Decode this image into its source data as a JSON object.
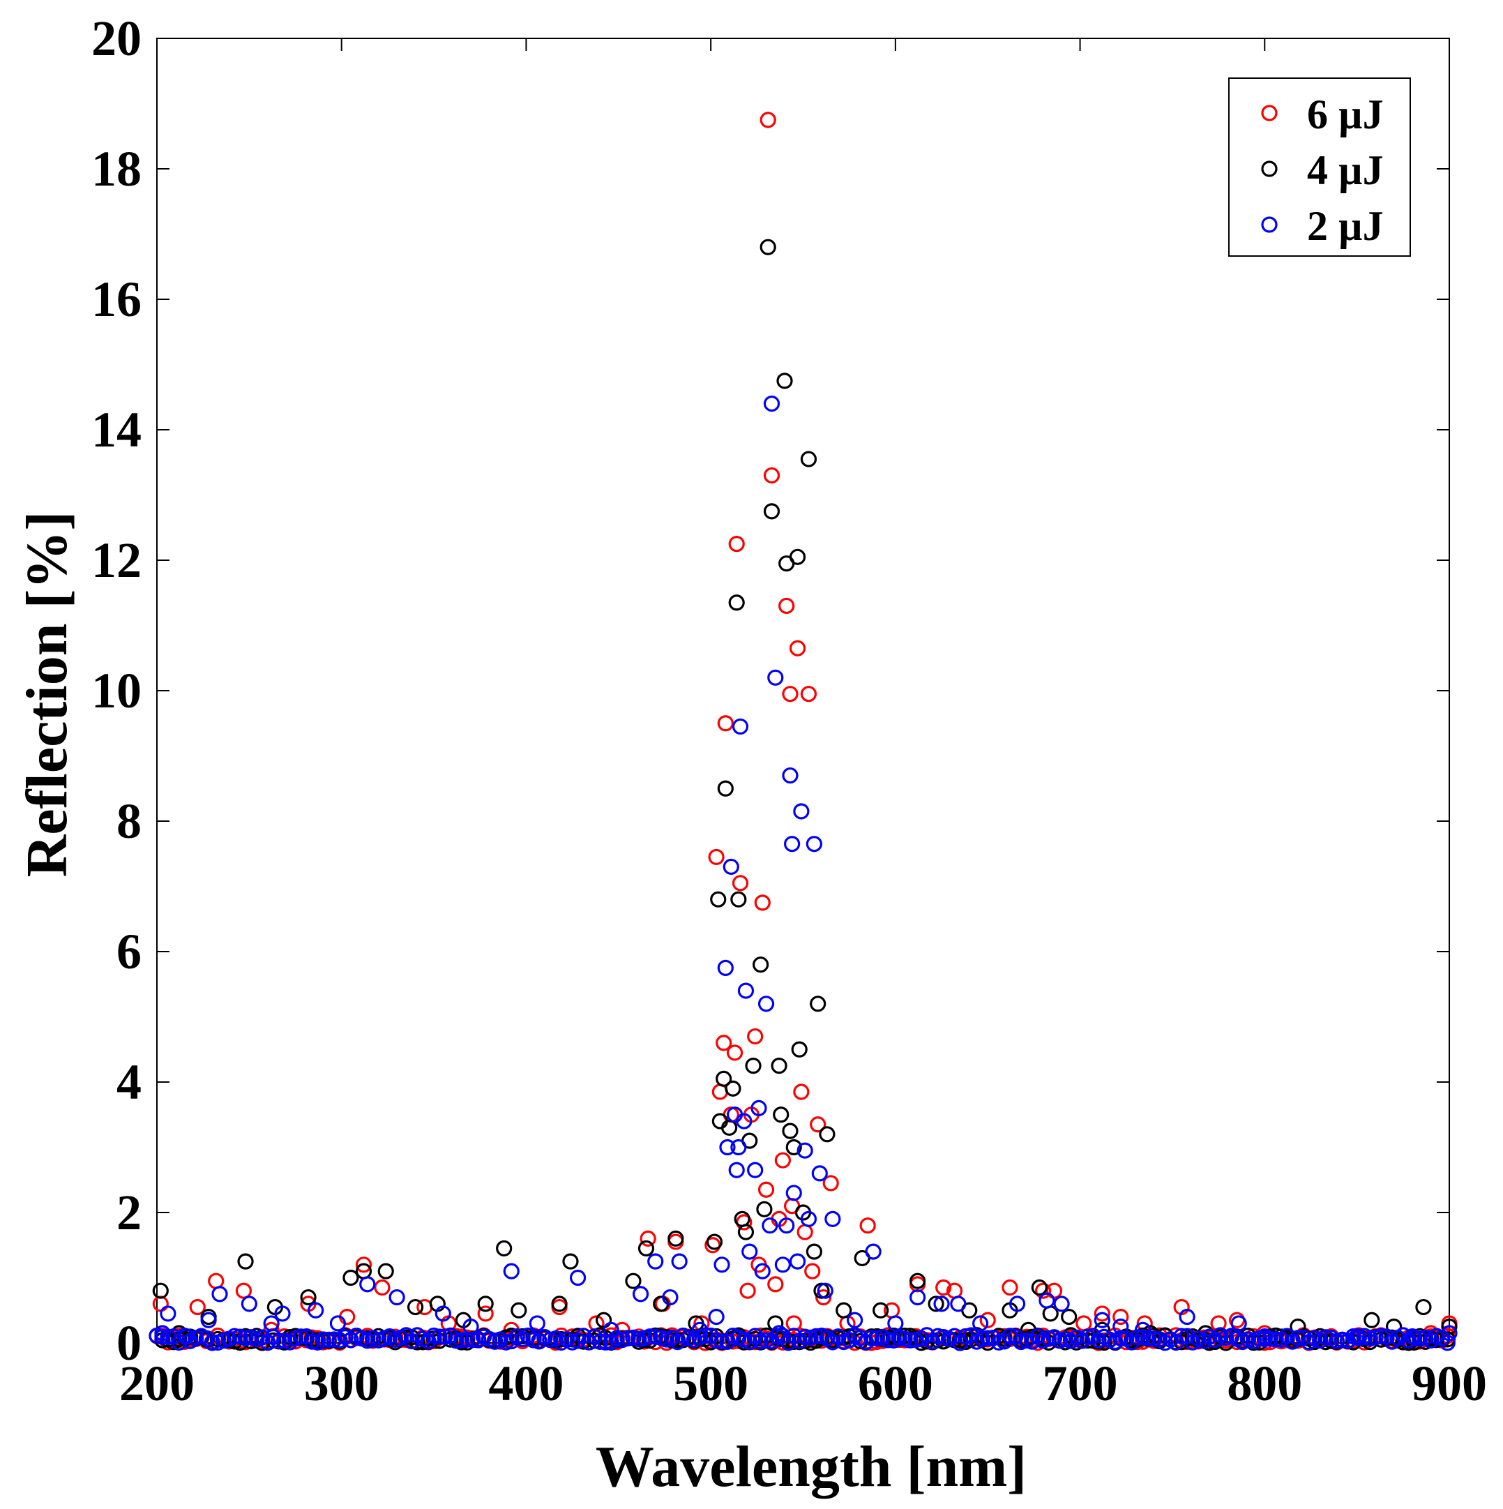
{
  "chart_data": {
    "type": "scatter",
    "title": "",
    "xlabel": "Wavelength [nm]",
    "ylabel": "Reflection [%]",
    "xlim": [
      200,
      900
    ],
    "ylim": [
      0,
      20
    ],
    "xticks": [
      200,
      300,
      400,
      500,
      600,
      700,
      800,
      900
    ],
    "yticks": [
      0,
      2,
      4,
      6,
      8,
      10,
      12,
      14,
      16,
      18,
      20
    ],
    "legend_position": "top-right",
    "marker": "open-circle",
    "series": [
      {
        "name": "6 µJ",
        "color": "#ff0000",
        "points": [
          [
            202,
            0.6
          ],
          [
            212,
            0.1
          ],
          [
            222,
            0.55
          ],
          [
            232,
            0.95
          ],
          [
            247,
            0.8
          ],
          [
            262,
            0.2
          ],
          [
            282,
            0.6
          ],
          [
            303,
            0.4
          ],
          [
            312,
            1.2
          ],
          [
            322,
            0.85
          ],
          [
            345,
            0.55
          ],
          [
            358,
            0.3
          ],
          [
            378,
            0.45
          ],
          [
            392,
            0.2
          ],
          [
            418,
            0.55
          ],
          [
            438,
            0.3
          ],
          [
            452,
            0.2
          ],
          [
            466,
            1.6
          ],
          [
            474,
            0.6
          ],
          [
            481,
            1.55
          ],
          [
            495,
            0.3
          ],
          [
            501,
            1.5
          ],
          [
            503,
            7.45
          ],
          [
            505,
            3.85
          ],
          [
            507,
            4.6
          ],
          [
            508,
            9.5
          ],
          [
            511,
            3.5
          ],
          [
            513,
            4.45
          ],
          [
            514,
            12.25
          ],
          [
            516,
            7.05
          ],
          [
            518,
            1.85
          ],
          [
            520,
            0.8
          ],
          [
            522,
            3.5
          ],
          [
            524,
            4.7
          ],
          [
            526,
            1.2
          ],
          [
            528,
            6.75
          ],
          [
            530,
            2.35
          ],
          [
            531,
            18.75
          ],
          [
            533,
            13.3
          ],
          [
            535,
            0.9
          ],
          [
            537,
            1.9
          ],
          [
            539,
            2.8
          ],
          [
            541,
            11.3
          ],
          [
            543,
            9.95
          ],
          [
            544,
            2.1
          ],
          [
            545,
            0.3
          ],
          [
            547,
            10.65
          ],
          [
            549,
            3.85
          ],
          [
            551,
            1.7
          ],
          [
            553,
            9.95
          ],
          [
            555,
            1.1
          ],
          [
            558,
            3.35
          ],
          [
            561,
            0.7
          ],
          [
            565,
            2.45
          ],
          [
            574,
            0.3
          ],
          [
            585,
            1.8
          ],
          [
            598,
            0.5
          ],
          [
            612,
            0.9
          ],
          [
            626,
            0.85
          ],
          [
            632,
            0.8
          ],
          [
            650,
            0.35
          ],
          [
            662,
            0.85
          ],
          [
            680,
            0.8
          ],
          [
            686,
            0.8
          ],
          [
            702,
            0.3
          ],
          [
            712,
            0.45
          ],
          [
            722,
            0.4
          ],
          [
            735,
            0.3
          ],
          [
            755,
            0.55
          ],
          [
            775,
            0.3
          ],
          [
            785,
            0.35
          ],
          [
            800,
            0.15
          ],
          [
            830,
            0.1
          ],
          [
            860,
            0.1
          ],
          [
            890,
            0.15
          ],
          [
            900,
            0.3
          ]
        ]
      },
      {
        "name": "4 µJ",
        "color": "#000000",
        "points": [
          [
            202,
            0.8
          ],
          [
            212,
            0.15
          ],
          [
            228,
            0.4
          ],
          [
            248,
            1.25
          ],
          [
            264,
            0.55
          ],
          [
            282,
            0.7
          ],
          [
            305,
            1.0
          ],
          [
            312,
            1.1
          ],
          [
            324,
            1.1
          ],
          [
            340,
            0.55
          ],
          [
            352,
            0.6
          ],
          [
            366,
            0.35
          ],
          [
            378,
            0.6
          ],
          [
            388,
            1.45
          ],
          [
            396,
            0.5
          ],
          [
            418,
            0.6
          ],
          [
            424,
            1.25
          ],
          [
            442,
            0.35
          ],
          [
            458,
            0.95
          ],
          [
            465,
            1.45
          ],
          [
            473,
            0.6
          ],
          [
            481,
            1.6
          ],
          [
            492,
            0.3
          ],
          [
            502,
            1.55
          ],
          [
            504,
            6.8
          ],
          [
            505,
            3.4
          ],
          [
            507,
            4.05
          ],
          [
            508,
            8.5
          ],
          [
            510,
            3.3
          ],
          [
            512,
            3.9
          ],
          [
            514,
            11.35
          ],
          [
            515,
            6.8
          ],
          [
            517,
            1.9
          ],
          [
            519,
            1.7
          ],
          [
            521,
            3.1
          ],
          [
            523,
            4.25
          ],
          [
            527,
            5.8
          ],
          [
            529,
            2.05
          ],
          [
            531,
            16.8
          ],
          [
            533,
            12.75
          ],
          [
            535,
            0.3
          ],
          [
            537,
            4.25
          ],
          [
            538,
            3.5
          ],
          [
            540,
            14.75
          ],
          [
            541,
            11.95
          ],
          [
            543,
            3.25
          ],
          [
            545,
            3.0
          ],
          [
            547,
            12.05
          ],
          [
            548,
            4.5
          ],
          [
            550,
            2.0
          ],
          [
            553,
            13.55
          ],
          [
            556,
            1.4
          ],
          [
            558,
            5.2
          ],
          [
            560,
            0.8
          ],
          [
            563,
            3.2
          ],
          [
            572,
            0.5
          ],
          [
            582,
            1.3
          ],
          [
            592,
            0.5
          ],
          [
            612,
            0.95
          ],
          [
            622,
            0.6
          ],
          [
            640,
            0.5
          ],
          [
            662,
            0.5
          ],
          [
            672,
            0.2
          ],
          [
            678,
            0.85
          ],
          [
            684,
            0.45
          ],
          [
            694,
            0.4
          ],
          [
            712,
            0.2
          ],
          [
            738,
            0.15
          ],
          [
            768,
            0.15
          ],
          [
            818,
            0.25
          ],
          [
            858,
            0.35
          ],
          [
            870,
            0.25
          ],
          [
            886,
            0.55
          ],
          [
            900,
            0.25
          ]
        ]
      },
      {
        "name": "2 µJ",
        "color": "#0000ff",
        "points": [
          [
            203,
            0.15
          ],
          [
            206,
            0.45
          ],
          [
            216,
            0.1
          ],
          [
            228,
            0.35
          ],
          [
            234,
            0.75
          ],
          [
            250,
            0.6
          ],
          [
            262,
            0.3
          ],
          [
            268,
            0.45
          ],
          [
            286,
            0.5
          ],
          [
            298,
            0.3
          ],
          [
            314,
            0.9
          ],
          [
            330,
            0.7
          ],
          [
            355,
            0.45
          ],
          [
            370,
            0.25
          ],
          [
            392,
            1.1
          ],
          [
            406,
            0.3
          ],
          [
            428,
            1.0
          ],
          [
            446,
            0.2
          ],
          [
            462,
            0.75
          ],
          [
            470,
            1.25
          ],
          [
            478,
            0.7
          ],
          [
            483,
            1.25
          ],
          [
            494,
            0.2
          ],
          [
            503,
            0.4
          ],
          [
            506,
            1.2
          ],
          [
            508,
            5.75
          ],
          [
            509,
            3.0
          ],
          [
            511,
            7.3
          ],
          [
            513,
            3.5
          ],
          [
            514,
            2.65
          ],
          [
            515,
            3.0
          ],
          [
            516,
            9.45
          ],
          [
            518,
            3.4
          ],
          [
            519,
            5.4
          ],
          [
            521,
            1.4
          ],
          [
            524,
            2.65
          ],
          [
            526,
            3.6
          ],
          [
            528,
            1.1
          ],
          [
            530,
            5.2
          ],
          [
            532,
            1.8
          ],
          [
            533,
            14.4
          ],
          [
            535,
            10.2
          ],
          [
            537,
            0.15
          ],
          [
            539,
            1.2
          ],
          [
            541,
            1.8
          ],
          [
            543,
            8.7
          ],
          [
            544,
            7.65
          ],
          [
            545,
            2.3
          ],
          [
            547,
            1.25
          ],
          [
            549,
            8.15
          ],
          [
            551,
            2.95
          ],
          [
            553,
            1.9
          ],
          [
            556,
            7.65
          ],
          [
            559,
            2.6
          ],
          [
            562,
            0.8
          ],
          [
            566,
            1.9
          ],
          [
            578,
            0.35
          ],
          [
            588,
            1.4
          ],
          [
            600,
            0.3
          ],
          [
            612,
            0.7
          ],
          [
            625,
            0.6
          ],
          [
            634,
            0.6
          ],
          [
            646,
            0.3
          ],
          [
            666,
            0.6
          ],
          [
            682,
            0.65
          ],
          [
            690,
            0.6
          ],
          [
            712,
            0.35
          ],
          [
            722,
            0.25
          ],
          [
            734,
            0.2
          ],
          [
            758,
            0.4
          ],
          [
            786,
            0.3
          ],
          [
            800,
            0.1
          ],
          [
            850,
            0.1
          ],
          [
            880,
            0.1
          ],
          [
            900,
            0.15
          ]
        ]
      }
    ]
  }
}
